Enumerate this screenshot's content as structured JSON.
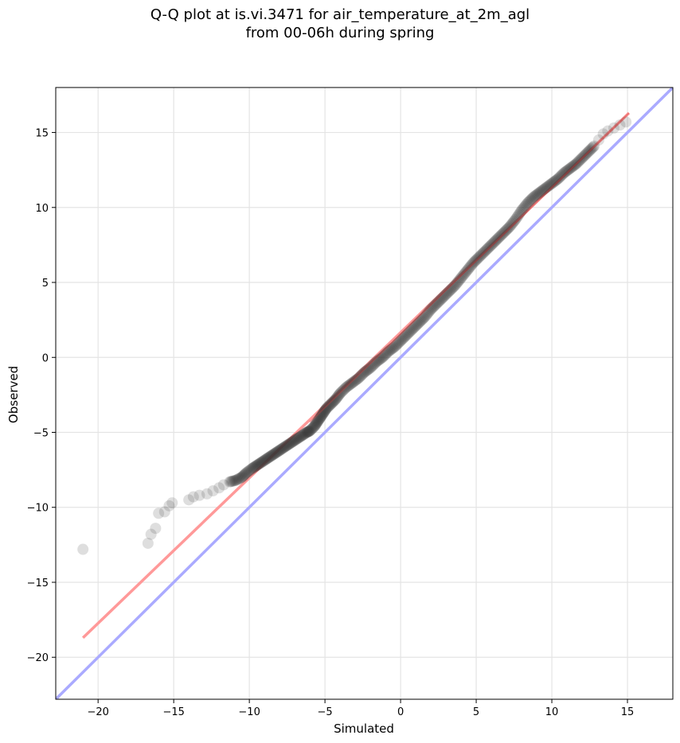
{
  "chart_data": {
    "type": "scatter",
    "title_line1": "Q-Q plot at is.vi.3471 for air_temperature_at_2m_agl",
    "title_line2": "from 00-06h during spring",
    "xlabel": "Simulated",
    "ylabel": "Observed",
    "xlim": [
      -22.8,
      18.0
    ],
    "ylim": [
      -22.8,
      18.0
    ],
    "xticks": [
      -20,
      -15,
      -10,
      -5,
      0,
      5,
      10,
      15
    ],
    "yticks": [
      -20,
      -15,
      -10,
      -5,
      0,
      5,
      10,
      15
    ],
    "xtick_labels": [
      "−20",
      "−15",
      "−10",
      "−5",
      "0",
      "5",
      "10",
      "15"
    ],
    "ytick_labels": [
      "−20",
      "−15",
      "−10",
      "−5",
      "0",
      "5",
      "10",
      "15"
    ],
    "grid": true,
    "reference_line": {
      "color": "#aaaaff",
      "from": [
        -22.8,
        -22.8
      ],
      "to": [
        18.0,
        18.0
      ]
    },
    "fit_line": {
      "color": "#ff9999",
      "from": [
        -21.0,
        -18.7
      ],
      "to": [
        15.1,
        16.3
      ]
    },
    "point_color": "#333333",
    "points": [
      {
        "x": -21.0,
        "y": -12.8
      },
      {
        "x": -16.7,
        "y": -12.4
      },
      {
        "x": -16.5,
        "y": -11.8
      },
      {
        "x": -16.2,
        "y": -11.4
      },
      {
        "x": -16.0,
        "y": -10.4
      },
      {
        "x": -15.6,
        "y": -10.3
      },
      {
        "x": -15.3,
        "y": -9.9
      },
      {
        "x": -15.1,
        "y": -9.7
      },
      {
        "x": -14.0,
        "y": -9.5
      },
      {
        "x": -13.7,
        "y": -9.3
      },
      {
        "x": -13.3,
        "y": -9.2
      },
      {
        "x": -12.8,
        "y": -9.1
      },
      {
        "x": -12.4,
        "y": -8.9
      },
      {
        "x": -12.0,
        "y": -8.7
      },
      {
        "x": -11.7,
        "y": -8.5
      },
      {
        "x": -11.3,
        "y": -8.3
      },
      {
        "x": -10.9,
        "y": -8.2
      },
      {
        "x": -10.5,
        "y": -8.0
      },
      {
        "x": -10.2,
        "y": -7.7
      },
      {
        "x": -9.8,
        "y": -7.4
      },
      {
        "x": -9.5,
        "y": -7.2
      },
      {
        "x": -9.2,
        "y": -7.0
      },
      {
        "x": -8.9,
        "y": -6.8
      },
      {
        "x": -8.6,
        "y": -6.6
      },
      {
        "x": -8.3,
        "y": -6.4
      },
      {
        "x": -8.0,
        "y": -6.2
      },
      {
        "x": -7.7,
        "y": -6.0
      },
      {
        "x": -7.4,
        "y": -5.8
      },
      {
        "x": -7.1,
        "y": -5.6
      },
      {
        "x": -6.8,
        "y": -5.4
      },
      {
        "x": -6.5,
        "y": -5.2
      },
      {
        "x": -6.2,
        "y": -5.0
      },
      {
        "x": -6.0,
        "y": -4.9
      },
      {
        "x": -5.7,
        "y": -4.6
      },
      {
        "x": -5.5,
        "y": -4.3
      },
      {
        "x": -5.3,
        "y": -4.0
      },
      {
        "x": -5.1,
        "y": -3.7
      },
      {
        "x": -4.9,
        "y": -3.4
      },
      {
        "x": -4.6,
        "y": -3.1
      },
      {
        "x": -4.3,
        "y": -2.8
      },
      {
        "x": -4.0,
        "y": -2.4
      },
      {
        "x": -3.6,
        "y": -2.0
      },
      {
        "x": -3.2,
        "y": -1.7
      },
      {
        "x": -2.8,
        "y": -1.4
      },
      {
        "x": -2.4,
        "y": -1.0
      },
      {
        "x": -2.0,
        "y": -0.7
      },
      {
        "x": -1.6,
        "y": -0.3
      },
      {
        "x": -1.2,
        "y": 0.0
      },
      {
        "x": -0.8,
        "y": 0.4
      },
      {
        "x": -0.4,
        "y": 0.7
      },
      {
        "x": 0.0,
        "y": 1.1
      },
      {
        "x": 0.4,
        "y": 1.5
      },
      {
        "x": 0.8,
        "y": 1.9
      },
      {
        "x": 1.2,
        "y": 2.3
      },
      {
        "x": 1.6,
        "y": 2.7
      },
      {
        "x": 2.0,
        "y": 3.2
      },
      {
        "x": 2.4,
        "y": 3.6
      },
      {
        "x": 2.8,
        "y": 4.0
      },
      {
        "x": 3.2,
        "y": 4.4
      },
      {
        "x": 3.6,
        "y": 4.8
      },
      {
        "x": 4.0,
        "y": 5.3
      },
      {
        "x": 4.4,
        "y": 5.8
      },
      {
        "x": 4.8,
        "y": 6.3
      },
      {
        "x": 5.2,
        "y": 6.7
      },
      {
        "x": 5.6,
        "y": 7.1
      },
      {
        "x": 6.0,
        "y": 7.5
      },
      {
        "x": 6.4,
        "y": 7.9
      },
      {
        "x": 6.8,
        "y": 8.3
      },
      {
        "x": 7.2,
        "y": 8.7
      },
      {
        "x": 7.6,
        "y": 9.2
      },
      {
        "x": 8.0,
        "y": 9.8
      },
      {
        "x": 8.4,
        "y": 10.3
      },
      {
        "x": 8.8,
        "y": 10.7
      },
      {
        "x": 9.2,
        "y": 11.0
      },
      {
        "x": 9.6,
        "y": 11.3
      },
      {
        "x": 10.0,
        "y": 11.6
      },
      {
        "x": 10.4,
        "y": 11.9
      },
      {
        "x": 10.8,
        "y": 12.3
      },
      {
        "x": 11.2,
        "y": 12.6
      },
      {
        "x": 11.6,
        "y": 12.9
      },
      {
        "x": 12.0,
        "y": 13.3
      },
      {
        "x": 12.4,
        "y": 13.7
      },
      {
        "x": 12.8,
        "y": 14.1
      },
      {
        "x": 13.1,
        "y": 14.5
      },
      {
        "x": 13.4,
        "y": 14.9
      },
      {
        "x": 13.7,
        "y": 15.1
      },
      {
        "x": 14.1,
        "y": 15.3
      },
      {
        "x": 14.5,
        "y": 15.5
      },
      {
        "x": 14.9,
        "y": 15.7
      }
    ]
  }
}
